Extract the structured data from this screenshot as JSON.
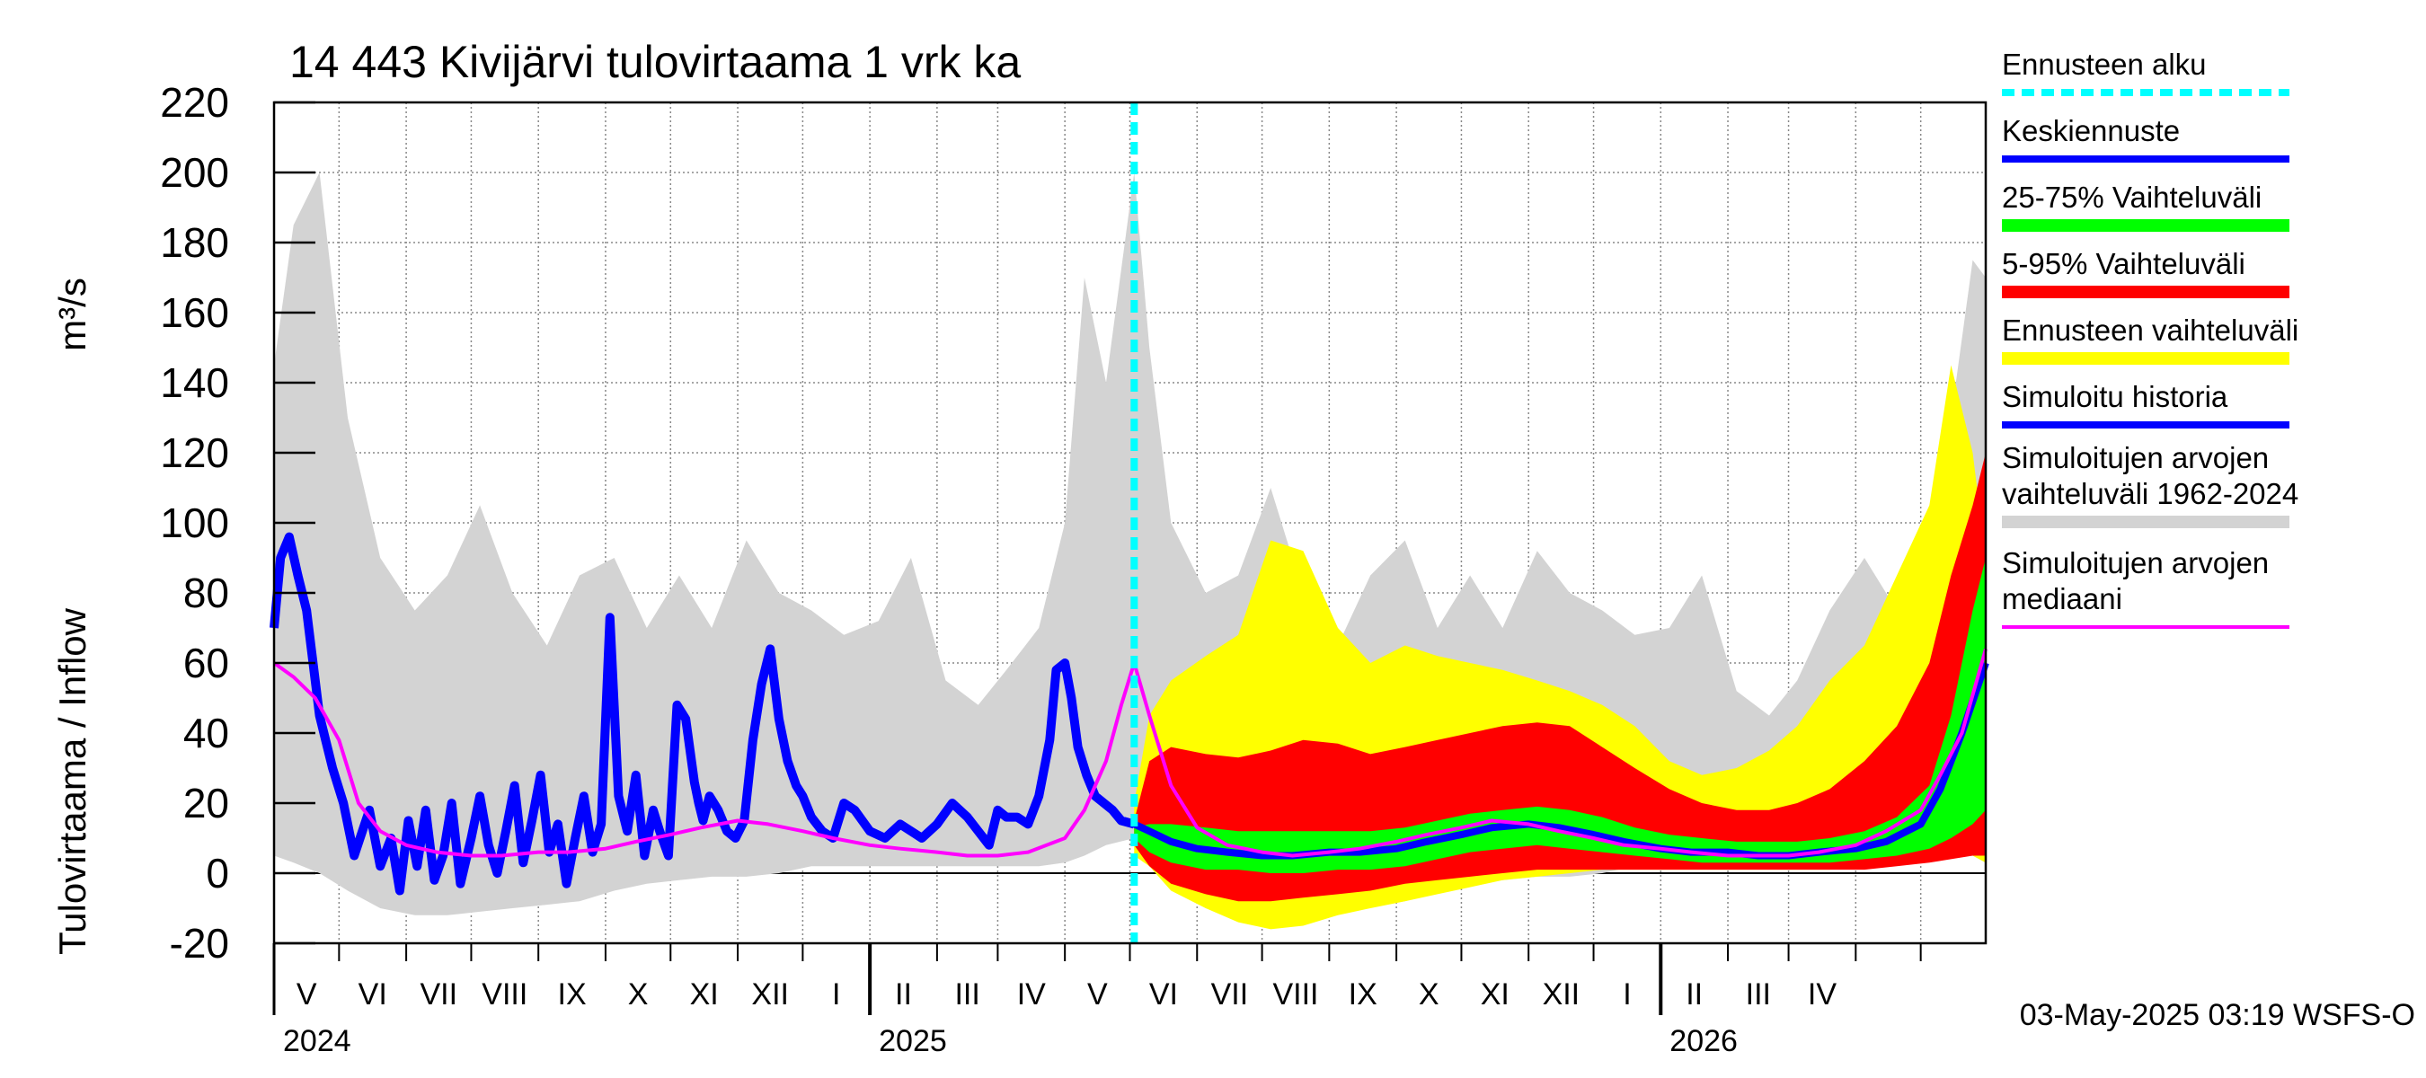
{
  "chart_data": {
    "type": "line",
    "title": "14 443 Kivijärvi tulovirtaama 1 vrk ka",
    "ylabel": "Tulovirtaama / Inflow",
    "yunit": "m³/s",
    "ylim": [
      -20,
      220
    ],
    "yticks": [
      -20,
      0,
      20,
      40,
      60,
      80,
      100,
      120,
      140,
      160,
      180,
      200,
      220
    ],
    "x_range": [
      "2024-04-01",
      "2026-05-31"
    ],
    "grid": true,
    "legend_position": "right",
    "month_labels": [
      "V",
      "VI",
      "VII",
      "VIII",
      "IX",
      "X",
      "XI",
      "XII",
      "I",
      "II",
      "III",
      "IV",
      "V",
      "VI",
      "VII",
      "VIII",
      "IX",
      "X",
      "XI",
      "XII",
      "I",
      "II",
      "III",
      "IV"
    ],
    "year_labels": [
      "2024",
      "2025",
      "2026"
    ],
    "forecast_start": "2025-05-03",
    "timestamp": "03-May-2025 03:19 WSFS-O",
    "colors": {
      "forecast_start": "#00ffff",
      "mean_forecast": "#0000ff",
      "band_25_75": "#00ff00",
      "band_5_95": "#ff0000",
      "forecast_range": "#ffff00",
      "simulated_history": "#0000ff",
      "historical_range": "#d3d3d3",
      "median": "#ff00ff"
    },
    "series": [
      {
        "name": "Simuloitujen arvojen vaihteluväli 1962-2024",
        "kind": "band",
        "x": [
          "2024-04-01",
          "2024-04-10",
          "2024-04-22",
          "2024-05-05",
          "2024-05-20",
          "2024-06-05",
          "2024-06-20",
          "2024-07-05",
          "2024-07-20",
          "2024-08-05",
          "2024-08-20",
          "2024-09-05",
          "2024-09-20",
          "2024-10-05",
          "2024-10-20",
          "2024-11-05",
          "2024-11-20",
          "2024-12-05",
          "2024-12-20",
          "2025-01-05",
          "2025-01-20",
          "2025-02-05",
          "2025-02-20",
          "2025-03-05",
          "2025-03-20",
          "2025-04-01",
          "2025-04-10",
          "2025-04-20",
          "2025-05-03",
          "2025-05-10",
          "2025-05-20",
          "2025-06-05",
          "2025-06-20",
          "2025-07-05",
          "2025-07-20",
          "2025-08-05",
          "2025-08-20",
          "2025-09-05",
          "2025-09-20",
          "2025-10-05",
          "2025-10-20",
          "2025-11-05",
          "2025-11-20",
          "2025-12-05",
          "2025-12-20",
          "2026-01-05",
          "2026-01-20",
          "2026-02-05",
          "2026-02-20",
          "2026-03-05",
          "2026-03-20",
          "2026-04-05",
          "2026-04-20",
          "2026-05-05",
          "2026-05-15",
          "2026-05-25",
          "2026-05-31"
        ],
        "upper": [
          145,
          185,
          200,
          130,
          90,
          75,
          85,
          105,
          80,
          65,
          85,
          90,
          70,
          85,
          70,
          95,
          80,
          75,
          68,
          72,
          90,
          55,
          48,
          58,
          70,
          100,
          170,
          140,
          200,
          150,
          100,
          80,
          85,
          110,
          80,
          65,
          85,
          95,
          70,
          85,
          70,
          92,
          80,
          75,
          68,
          70,
          85,
          52,
          45,
          55,
          75,
          90,
          75,
          90,
          130,
          175,
          170
        ],
        "lower": [
          5,
          3,
          0,
          -5,
          -10,
          -12,
          -12,
          -11,
          -10,
          -9,
          -8,
          -5,
          -3,
          -2,
          -1,
          -1,
          0,
          2,
          2,
          2,
          2,
          2,
          2,
          2,
          2,
          3,
          5,
          8,
          10,
          5,
          -3,
          -10,
          -12,
          -12,
          -11,
          -10,
          -9,
          -8,
          -5,
          -3,
          -2,
          -1,
          -1,
          0,
          2,
          2,
          2,
          2,
          2,
          2,
          2,
          3,
          4,
          5,
          6,
          5,
          3
        ]
      },
      {
        "name": "Ennusteen vaihteluväli",
        "kind": "band",
        "x": [
          "2025-05-03",
          "2025-05-10",
          "2025-05-20",
          "2025-06-05",
          "2025-06-20",
          "2025-07-05",
          "2025-07-20",
          "2025-08-05",
          "2025-08-20",
          "2025-09-05",
          "2025-09-20",
          "2025-10-05",
          "2025-10-20",
          "2025-11-05",
          "2025-11-20",
          "2025-12-05",
          "2025-12-20",
          "2026-01-05",
          "2026-01-20",
          "2026-02-05",
          "2026-02-20",
          "2026-03-05",
          "2026-03-20",
          "2026-04-05",
          "2026-04-20",
          "2026-05-05",
          "2026-05-15",
          "2026-05-25",
          "2026-05-31"
        ],
        "upper": [
          20,
          45,
          55,
          62,
          68,
          95,
          92,
          70,
          60,
          65,
          62,
          60,
          58,
          55,
          52,
          48,
          42,
          32,
          28,
          30,
          35,
          42,
          55,
          65,
          85,
          105,
          145,
          120,
          90
        ],
        "lower": [
          5,
          2,
          -5,
          -10,
          -14,
          -16,
          -15,
          -12,
          -10,
          -8,
          -6,
          -4,
          -2,
          -1,
          0,
          1,
          1,
          1,
          1,
          1,
          1,
          1,
          1,
          2,
          3,
          4,
          5,
          5,
          3
        ]
      },
      {
        "name": "5-95% Vaihteluväli",
        "kind": "band",
        "x": [
          "2025-05-03",
          "2025-05-10",
          "2025-05-20",
          "2025-06-05",
          "2025-06-20",
          "2025-07-05",
          "2025-07-20",
          "2025-08-05",
          "2025-08-20",
          "2025-09-05",
          "2025-09-20",
          "2025-10-05",
          "2025-10-20",
          "2025-11-05",
          "2025-11-20",
          "2025-12-05",
          "2025-12-20",
          "2026-01-05",
          "2026-01-20",
          "2026-02-05",
          "2026-02-20",
          "2026-03-05",
          "2026-03-20",
          "2026-04-05",
          "2026-04-20",
          "2026-05-05",
          "2026-05-15",
          "2026-05-25",
          "2026-05-31"
        ],
        "upper": [
          15,
          32,
          36,
          34,
          33,
          35,
          38,
          37,
          34,
          36,
          38,
          40,
          42,
          43,
          42,
          36,
          30,
          24,
          20,
          18,
          18,
          20,
          24,
          32,
          42,
          60,
          85,
          105,
          120
        ],
        "lower": [
          8,
          2,
          -3,
          -6,
          -8,
          -8,
          -7,
          -6,
          -5,
          -3,
          -2,
          -1,
          0,
          1,
          1,
          1,
          1,
          1,
          1,
          1,
          1,
          1,
          1,
          1,
          2,
          3,
          4,
          5,
          5
        ]
      },
      {
        "name": "25-75% Vaihteluväli",
        "kind": "band",
        "x": [
          "2025-05-03",
          "2025-05-10",
          "2025-05-20",
          "2025-06-05",
          "2025-06-20",
          "2025-07-05",
          "2025-07-20",
          "2025-08-05",
          "2025-08-20",
          "2025-09-05",
          "2025-09-20",
          "2025-10-05",
          "2025-10-20",
          "2025-11-05",
          "2025-11-20",
          "2025-12-05",
          "2025-12-20",
          "2026-01-05",
          "2026-01-20",
          "2026-02-05",
          "2026-02-20",
          "2026-03-05",
          "2026-03-20",
          "2026-04-05",
          "2026-04-20",
          "2026-05-05",
          "2026-05-15",
          "2026-05-25",
          "2026-05-31"
        ],
        "upper": [
          13,
          14,
          14,
          13,
          12,
          12,
          12,
          12,
          12,
          13,
          15,
          17,
          18,
          19,
          18,
          16,
          13,
          11,
          10,
          9,
          9,
          9,
          10,
          12,
          16,
          25,
          45,
          75,
          90
        ],
        "lower": [
          10,
          6,
          3,
          1,
          1,
          0,
          0,
          1,
          1,
          2,
          4,
          6,
          7,
          8,
          7,
          6,
          5,
          4,
          3,
          3,
          3,
          3,
          3,
          4,
          5,
          7,
          10,
          14,
          18
        ]
      },
      {
        "name": "Simuloitu historia",
        "kind": "line",
        "x": [
          "2024-04-01",
          "2024-04-04",
          "2024-04-08",
          "2024-04-12",
          "2024-04-16",
          "2024-04-22",
          "2024-04-28",
          "2024-05-03",
          "2024-05-08",
          "2024-05-15",
          "2024-05-20",
          "2024-05-25",
          "2024-05-29",
          "2024-06-02",
          "2024-06-06",
          "2024-06-10",
          "2024-06-14",
          "2024-06-18",
          "2024-06-22",
          "2024-06-26",
          "2024-07-01",
          "2024-07-05",
          "2024-07-09",
          "2024-07-13",
          "2024-07-17",
          "2024-07-21",
          "2024-07-25",
          "2024-07-29",
          "2024-08-02",
          "2024-08-06",
          "2024-08-10",
          "2024-08-14",
          "2024-08-18",
          "2024-08-22",
          "2024-08-26",
          "2024-08-30",
          "2024-09-03",
          "2024-09-07",
          "2024-09-11",
          "2024-09-15",
          "2024-09-19",
          "2024-09-23",
          "2024-09-26",
          "2024-09-30",
          "2024-10-04",
          "2024-10-08",
          "2024-10-12",
          "2024-10-14",
          "2024-10-16",
          "2024-10-19",
          "2024-10-23",
          "2024-10-27",
          "2024-10-31",
          "2024-11-04",
          "2024-11-08",
          "2024-11-12",
          "2024-11-16",
          "2024-11-20",
          "2024-11-24",
          "2024-11-28",
          "2024-12-01",
          "2024-12-05",
          "2024-12-10",
          "2024-12-15",
          "2024-12-20",
          "2024-12-25",
          "2025-01-01",
          "2025-01-08",
          "2025-01-15",
          "2025-01-20",
          "2025-01-25",
          "2025-02-01",
          "2025-02-08",
          "2025-02-15",
          "2025-02-20",
          "2025-02-25",
          "2025-03-01",
          "2025-03-05",
          "2025-03-10",
          "2025-03-15",
          "2025-03-20",
          "2025-03-25",
          "2025-03-28",
          "2025-04-01",
          "2025-04-04",
          "2025-04-07",
          "2025-04-11",
          "2025-04-15",
          "2025-04-19",
          "2025-04-23",
          "2025-04-27",
          "2025-05-03"
        ],
        "y": [
          70,
          90,
          96,
          85,
          75,
          45,
          30,
          20,
          5,
          18,
          2,
          10,
          -5,
          15,
          2,
          18,
          -2,
          5,
          20,
          -3,
          10,
          22,
          8,
          0,
          12,
          25,
          3,
          15,
          28,
          6,
          14,
          -3,
          10,
          22,
          6,
          14,
          73,
          22,
          12,
          28,
          5,
          18,
          12,
          5,
          48,
          44,
          26,
          20,
          15,
          22,
          18,
          12,
          10,
          15,
          38,
          54,
          64,
          44,
          32,
          25,
          22,
          16,
          12,
          10,
          20,
          18,
          12,
          10,
          14,
          12,
          10,
          14,
          20,
          16,
          12,
          8,
          18,
          16,
          16,
          14,
          22,
          38,
          58,
          60,
          50,
          36,
          28,
          22,
          20,
          18,
          15,
          14
        ]
      },
      {
        "name": "Keskiennuste",
        "kind": "line",
        "x": [
          "2025-05-03",
          "2025-05-10",
          "2025-05-20",
          "2025-06-01",
          "2025-06-15",
          "2025-07-01",
          "2025-07-15",
          "2025-08-01",
          "2025-08-15",
          "2025-09-01",
          "2025-09-15",
          "2025-10-01",
          "2025-10-15",
          "2025-11-01",
          "2025-11-15",
          "2025-12-01",
          "2025-12-15",
          "2026-01-01",
          "2026-01-15",
          "2026-02-01",
          "2026-02-15",
          "2026-03-01",
          "2026-03-15",
          "2026-04-01",
          "2026-04-15",
          "2026-05-01",
          "2026-05-10",
          "2026-05-20",
          "2026-05-31"
        ],
        "y": [
          14,
          12,
          9,
          7,
          6,
          5,
          5,
          6,
          6,
          7,
          9,
          11,
          13,
          14,
          13,
          11,
          9,
          7,
          6,
          6,
          5,
          5,
          6,
          7,
          9,
          14,
          24,
          40,
          60
        ]
      },
      {
        "name": "Simuloitujen arvojen mediaani",
        "kind": "line",
        "x": [
          "2024-04-01",
          "2024-04-10",
          "2024-04-20",
          "2024-05-01",
          "2024-05-10",
          "2024-05-20",
          "2024-06-01",
          "2024-06-15",
          "2024-07-01",
          "2024-07-15",
          "2024-08-01",
          "2024-08-15",
          "2024-09-01",
          "2024-09-15",
          "2024-10-01",
          "2024-10-15",
          "2024-11-01",
          "2024-11-15",
          "2024-12-01",
          "2024-12-15",
          "2025-01-01",
          "2025-01-15",
          "2025-02-01",
          "2025-02-15",
          "2025-03-01",
          "2025-03-15",
          "2025-04-01",
          "2025-04-10",
          "2025-04-20",
          "2025-04-27",
          "2025-05-03",
          "2025-05-10",
          "2025-05-20",
          "2025-06-01",
          "2025-06-15",
          "2025-07-01",
          "2025-07-15",
          "2025-08-01",
          "2025-08-15",
          "2025-09-01",
          "2025-09-15",
          "2025-10-01",
          "2025-10-15",
          "2025-11-01",
          "2025-11-15",
          "2025-12-01",
          "2025-12-15",
          "2026-01-01",
          "2026-01-15",
          "2026-02-01",
          "2026-02-15",
          "2026-03-01",
          "2026-03-15",
          "2026-04-01",
          "2026-04-15",
          "2026-05-01",
          "2026-05-10",
          "2026-05-20",
          "2026-05-31"
        ],
        "y": [
          60,
          56,
          50,
          38,
          20,
          12,
          8,
          6,
          5,
          5,
          6,
          6,
          7,
          9,
          11,
          13,
          15,
          14,
          12,
          10,
          8,
          7,
          6,
          5,
          5,
          6,
          10,
          18,
          32,
          48,
          60,
          45,
          25,
          13,
          8,
          6,
          5,
          6,
          7,
          9,
          11,
          13,
          15,
          14,
          12,
          10,
          8,
          7,
          6,
          5,
          5,
          5,
          6,
          8,
          12,
          18,
          28,
          40,
          64
        ]
      }
    ],
    "legend": [
      {
        "label": "Ennusteen alku",
        "swatch": "dash",
        "color": "#00ffff"
      },
      {
        "label": "Keskiennuste",
        "swatch": "line",
        "color": "#0000ff"
      },
      {
        "label": "25-75% Vaihteluväli",
        "swatch": "bar",
        "color": "#00ff00"
      },
      {
        "label": "5-95% Vaihteluväli",
        "swatch": "bar",
        "color": "#ff0000"
      },
      {
        "label": "Ennusteen vaihteluväli",
        "swatch": "bar",
        "color": "#ffff00"
      },
      {
        "label": "Simuloitu historia",
        "swatch": "line",
        "color": "#0000ff"
      },
      {
        "label": "Simuloitujen arvojen vaihteluväli 1962-2024",
        "lines": [
          "Simuloitujen arvojen",
          "vaihteluväli 1962-2024"
        ],
        "swatch": "bar",
        "color": "#d3d3d3"
      },
      {
        "label": "Simuloitujen arvojen mediaani",
        "lines": [
          "Simuloitujen arvojen",
          "mediaani"
        ],
        "swatch": "line",
        "color": "#ff00ff"
      }
    ]
  }
}
